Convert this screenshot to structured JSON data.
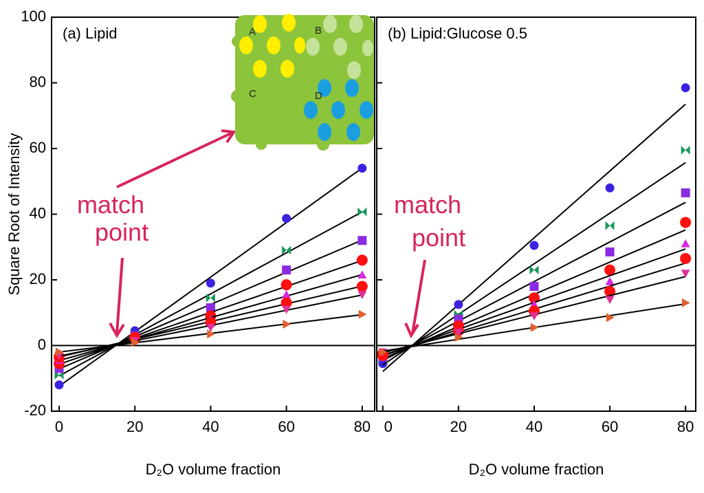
{
  "chart_data": [
    {
      "type": "scatter",
      "title": "(a) Lipid",
      "ylabel": "Square Root of Intensity",
      "xlabel": "D₂O volume fraction",
      "annotation": "match point",
      "x": [
        0,
        20,
        40,
        60,
        80
      ],
      "xlim": [
        -2,
        83.3
      ],
      "ylim": [
        -20,
        100
      ],
      "xticks": [
        0,
        20,
        40,
        60,
        80
      ],
      "yticks": [
        -20,
        0,
        20,
        40,
        60,
        80,
        100
      ],
      "fit_lines": true,
      "series": [
        {
          "marker": "circle",
          "color": "#3b22e0",
          "values": [
            -12,
            4.5,
            19,
            38.7,
            54
          ]
        },
        {
          "marker": "bowtie",
          "color": "#17975a",
          "values": [
            -9,
            3.5,
            14.5,
            29,
            40.7
          ]
        },
        {
          "marker": "square",
          "color": "#8a2be2",
          "values": [
            -7,
            3,
            11.5,
            23,
            32
          ]
        },
        {
          "marker": "circle",
          "color": "#ff1010",
          "values": [
            -5.5,
            2.5,
            9,
            18.5,
            26
          ]
        },
        {
          "marker": "triangle",
          "color": "#d828e0",
          "values": [
            -4.5,
            2,
            8,
            15.5,
            21.5
          ]
        },
        {
          "marker": "circle",
          "color": "#ff1010",
          "values": [
            -3.5,
            2,
            7,
            13,
            18
          ]
        },
        {
          "marker": "triangle-down",
          "color": "#e0309a",
          "values": [
            -3,
            1.5,
            5.5,
            11,
            15.5
          ]
        },
        {
          "marker": "triangle-right",
          "color": "#e06030",
          "values": [
            -2,
            1,
            3.5,
            6.5,
            9.5
          ]
        }
      ]
    },
    {
      "type": "scatter",
      "title": "(b) Lipid:Glucose 0.5",
      "xlabel": "D₂O volume fraction",
      "annotation": "match point",
      "x": [
        0,
        20,
        40,
        60,
        80
      ],
      "xlim": [
        -1.6,
        82.7
      ],
      "ylim": [
        -20,
        100
      ],
      "xticks": [
        0,
        20,
        40,
        60,
        80
      ],
      "yticks": [
        -20,
        0,
        20,
        40,
        60,
        80,
        100
      ],
      "fit_lines": true,
      "series": [
        {
          "marker": "circle",
          "color": "#3b22e0",
          "values": [
            -5.5,
            12.5,
            30.5,
            48,
            78.5
          ]
        },
        {
          "marker": "bowtie",
          "color": "#17975a",
          "values": [
            -4,
            9.5,
            23,
            36.5,
            59.5
          ]
        },
        {
          "marker": "square",
          "color": "#8a2be2",
          "values": [
            -3.5,
            8,
            18,
            28.5,
            46.5
          ]
        },
        {
          "marker": "circle",
          "color": "#ff1010",
          "values": [
            -3,
            6,
            14.5,
            23,
            37.5
          ]
        },
        {
          "marker": "triangle",
          "color": "#d828e0",
          "values": [
            -2.5,
            5,
            12.5,
            19.5,
            31
          ]
        },
        {
          "marker": "circle",
          "color": "#ff1010",
          "values": [
            -2.5,
            4.5,
            10.5,
            16.5,
            26.5
          ]
        },
        {
          "marker": "triangle-down",
          "color": "#e0309a",
          "values": [
            -2,
            4,
            9,
            14,
            22
          ]
        },
        {
          "marker": "triangle-right",
          "color": "#e06030",
          "values": [
            -2,
            2.5,
            5.5,
            8.5,
            13
          ]
        }
      ]
    }
  ],
  "inset": {
    "labels": [
      "A",
      "B",
      "C",
      "D"
    ]
  }
}
